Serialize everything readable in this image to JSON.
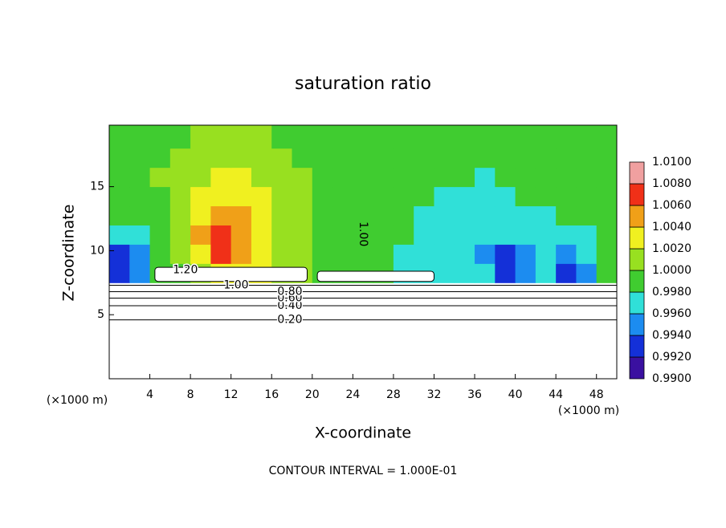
{
  "chart_data": {
    "type": "contour",
    "title": "saturation ratio",
    "x_label": "X-coordinate",
    "y_label": "Z-coordinate",
    "x_unit": "(×1000 m)",
    "footer": "CONTOUR INTERVAL = 1.000E-01",
    "xlim": [
      0,
      50
    ],
    "ylim": [
      0,
      19.8
    ],
    "xticks": [
      4,
      8,
      12,
      16,
      20,
      24,
      28,
      32,
      36,
      40,
      44,
      48
    ],
    "yticks": [
      5,
      10,
      15
    ],
    "x_edges": [
      0,
      2,
      4,
      6,
      8,
      10,
      12,
      14,
      16,
      18,
      20,
      22,
      24,
      26,
      28,
      30,
      32,
      34,
      36,
      38,
      40,
      42,
      44,
      46,
      48,
      50
    ],
    "z_edges": [
      7.5,
      9,
      10.5,
      12,
      13.5,
      15,
      16.5,
      18,
      19.8
    ],
    "values": [
      [
        0.993,
        0.995,
        0.999,
        1.0,
        1.002,
        1.003,
        1.004,
        1.003,
        1.002,
        1.001,
        1.0,
        0.999,
        0.999,
        0.999,
        0.997,
        0.997,
        0.997,
        0.997,
        0.997,
        0.993,
        0.996,
        0.997,
        0.993,
        0.996,
        0.999
      ],
      [
        0.994,
        0.996,
        0.999,
        1.001,
        1.004,
        1.007,
        1.006,
        1.004,
        1.002,
        1.001,
        1.0,
        0.999,
        0.999,
        0.999,
        0.997,
        0.997,
        0.997,
        0.997,
        0.996,
        0.994,
        0.996,
        0.997,
        0.995,
        0.997,
        0.999
      ],
      [
        0.997,
        0.997,
        0.999,
        1.001,
        1.005,
        1.008,
        1.006,
        1.004,
        1.002,
        1.001,
        1.0,
        1.0,
        0.999,
        0.999,
        0.999,
        0.997,
        0.997,
        0.997,
        0.997,
        0.997,
        0.997,
        0.997,
        0.997,
        0.997,
        0.999
      ],
      [
        0.999,
        0.999,
        1.0,
        1.001,
        1.004,
        1.006,
        1.005,
        1.003,
        1.002,
        1.001,
        1.0,
        1.0,
        0.999,
        0.999,
        0.999,
        0.997,
        0.997,
        0.997,
        0.997,
        0.997,
        0.997,
        0.997,
        0.999,
        0.999,
        0.999
      ],
      [
        1.0,
        1.0,
        1.0,
        1.001,
        1.003,
        1.004,
        1.004,
        1.003,
        1.002,
        1.001,
        1.0,
        1.0,
        0.999,
        0.999,
        0.999,
        0.999,
        0.997,
        0.997,
        0.997,
        0.997,
        0.999,
        0.999,
        0.999,
        0.999,
        0.999
      ],
      [
        1.0,
        1.0,
        1.001,
        1.001,
        1.002,
        1.003,
        1.003,
        1.002,
        1.001,
        1.001,
        1.0,
        1.0,
        0.999,
        0.999,
        0.999,
        0.999,
        0.999,
        0.999,
        0.997,
        0.999,
        0.999,
        0.999,
        0.999,
        0.999,
        0.999
      ],
      [
        1.0,
        1.0,
        1.0,
        1.001,
        1.001,
        1.002,
        1.002,
        1.001,
        1.001,
        1.0,
        1.0,
        1.0,
        0.999,
        0.999,
        0.999,
        0.999,
        0.999,
        0.999,
        0.999,
        0.999,
        0.999,
        0.999,
        0.999,
        0.999,
        0.999
      ],
      [
        1.0,
        1.0,
        1.0,
        1.0,
        1.001,
        1.001,
        1.001,
        1.001,
        1.0,
        1.0,
        1.0,
        1.0,
        1.0,
        0.999,
        0.999,
        0.999,
        0.999,
        0.999,
        0.999,
        0.999,
        0.999,
        0.999,
        0.999,
        0.999,
        0.999
      ]
    ],
    "saturated_regions": [
      {
        "x": [
          4.5,
          19.5
        ],
        "z": [
          7.6,
          8.7
        ]
      },
      {
        "x": [
          20.5,
          32
        ],
        "z": [
          7.6,
          8.4
        ]
      }
    ],
    "contours": [
      {
        "level": 0.2,
        "label": "0.20",
        "z": 4.6,
        "x": 17.8
      },
      {
        "level": 0.4,
        "label": "0.40",
        "z": 5.7,
        "x": 17.8
      },
      {
        "level": 0.6,
        "label": "0.60",
        "z": 6.3,
        "x": 17.8
      },
      {
        "level": 0.8,
        "label": "0.80",
        "z": 6.8,
        "x": 17.8
      },
      {
        "level": 1,
        "label": "1.00",
        "z": 7.3,
        "x": 12.5
      },
      {
        "level": 1.2,
        "label": "1.20",
        "z": 8.5,
        "x": 7.5
      }
    ],
    "annotations": [
      {
        "text": "1.00",
        "x": 25,
        "z": 11.3
      }
    ],
    "colorbar": {
      "ticks": [
        {
          "value": 0.99,
          "label": "0.9900"
        },
        {
          "value": 0.992,
          "label": "0.9920"
        },
        {
          "value": 0.994,
          "label": "0.9940"
        },
        {
          "value": 0.996,
          "label": "0.9960"
        },
        {
          "value": 0.998,
          "label": "0.9980"
        },
        {
          "value": 1,
          "label": "1.0000"
        },
        {
          "value": 1.002,
          "label": "1.0020"
        },
        {
          "value": 1.004,
          "label": "1.0040"
        },
        {
          "value": 1.006,
          "label": "1.0060"
        },
        {
          "value": 1.008,
          "label": "1.0080"
        },
        {
          "value": 1.01,
          "label": "1.0100"
        }
      ],
      "colors": [
        "#3a10a0",
        "#1430d8",
        "#1c8cf0",
        "#30e0d8",
        "#40cc30",
        "#98e020",
        "#f0f020",
        "#f0a018",
        "#f03018",
        "#f0a0a0"
      ]
    }
  }
}
